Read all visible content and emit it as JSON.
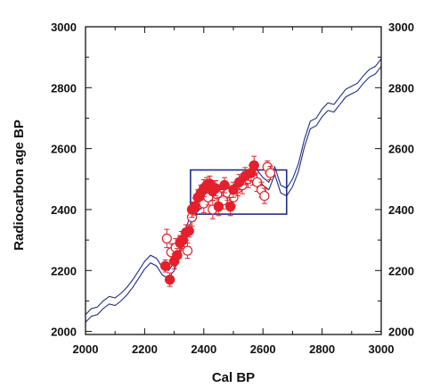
{
  "chart_data": {
    "type": "scatter",
    "title": "",
    "xlabel": "Cal BP",
    "ylabel": "Radiocarbon age BP",
    "xlim": [
      2000,
      3000
    ],
    "ylim": [
      1990,
      3000
    ],
    "x_ticks": [
      "2000",
      "2200",
      "2400",
      "2600",
      "2800",
      "3000"
    ],
    "x_tick_values": [
      2000,
      2200,
      2400,
      2600,
      2800,
      3000
    ],
    "y_ticks_left": [
      "2000",
      "2200",
      "2400",
      "2600",
      "2800",
      "3000"
    ],
    "y_ticks_right": [
      "2000",
      "2200",
      "2400",
      "2600",
      "2800",
      "3000"
    ],
    "y_tick_values": [
      2000,
      2200,
      2400,
      2600,
      2800,
      3000
    ],
    "grid": false,
    "colors": {
      "curve": "#1f2d8a",
      "points": "#e3202b",
      "box": "#1f2d8a",
      "axis": "#111111"
    },
    "calibration_curve": {
      "x": [
        2000,
        2020,
        2040,
        2060,
        2080,
        2100,
        2120,
        2140,
        2160,
        2180,
        2200,
        2220,
        2240,
        2260,
        2280,
        2300,
        2320,
        2340,
        2360,
        2380,
        2400,
        2420,
        2440,
        2460,
        2480,
        2500,
        2520,
        2540,
        2560,
        2580,
        2600,
        2620,
        2640,
        2660,
        2680,
        2700,
        2720,
        2740,
        2760,
        2780,
        2800,
        2820,
        2840,
        2860,
        2880,
        2900,
        2920,
        2940,
        2960,
        2980,
        3000
      ],
      "upper": [
        2055,
        2075,
        2080,
        2100,
        2115,
        2110,
        2125,
        2145,
        2170,
        2200,
        2230,
        2250,
        2240,
        2210,
        2200,
        2225,
        2280,
        2340,
        2395,
        2420,
        2440,
        2460,
        2470,
        2465,
        2470,
        2480,
        2500,
        2510,
        2525,
        2530,
        2505,
        2490,
        2540,
        2480,
        2470,
        2500,
        2550,
        2630,
        2690,
        2700,
        2730,
        2750,
        2745,
        2770,
        2795,
        2805,
        2815,
        2840,
        2860,
        2870,
        2895
      ],
      "lower": [
        2030,
        2050,
        2055,
        2075,
        2090,
        2085,
        2100,
        2120,
        2145,
        2175,
        2205,
        2225,
        2215,
        2185,
        2175,
        2200,
        2255,
        2315,
        2370,
        2395,
        2415,
        2435,
        2445,
        2440,
        2445,
        2455,
        2475,
        2485,
        2500,
        2505,
        2480,
        2465,
        2515,
        2455,
        2445,
        2475,
        2525,
        2605,
        2665,
        2675,
        2705,
        2725,
        2720,
        2745,
        2770,
        2780,
        2790,
        2815,
        2835,
        2845,
        2870
      ]
    },
    "series": [
      {
        "marker": "filled-circle",
        "points": [
          {
            "x": 2270,
            "y": 2215,
            "err": 20
          },
          {
            "x": 2285,
            "y": 2170,
            "err": 22
          },
          {
            "x": 2300,
            "y": 2230,
            "err": 25
          },
          {
            "x": 2310,
            "y": 2250,
            "err": 22
          },
          {
            "x": 2320,
            "y": 2290,
            "err": 25
          },
          {
            "x": 2330,
            "y": 2300,
            "err": 22
          },
          {
            "x": 2340,
            "y": 2325,
            "err": 25
          },
          {
            "x": 2350,
            "y": 2330,
            "err": 20
          },
          {
            "x": 2360,
            "y": 2400,
            "err": 25
          },
          {
            "x": 2370,
            "y": 2410,
            "err": 28
          },
          {
            "x": 2380,
            "y": 2440,
            "err": 25
          },
          {
            "x": 2390,
            "y": 2455,
            "err": 25
          },
          {
            "x": 2400,
            "y": 2470,
            "err": 28
          },
          {
            "x": 2410,
            "y": 2480,
            "err": 25
          },
          {
            "x": 2420,
            "y": 2485,
            "err": 25
          },
          {
            "x": 2430,
            "y": 2460,
            "err": 30
          },
          {
            "x": 2440,
            "y": 2470,
            "err": 25
          },
          {
            "x": 2450,
            "y": 2410,
            "err": 30
          },
          {
            "x": 2470,
            "y": 2480,
            "err": 25
          },
          {
            "x": 2490,
            "y": 2410,
            "err": 30
          },
          {
            "x": 2500,
            "y": 2465,
            "err": 25
          },
          {
            "x": 2520,
            "y": 2490,
            "err": 25
          },
          {
            "x": 2540,
            "y": 2510,
            "err": 28
          },
          {
            "x": 2560,
            "y": 2520,
            "err": 25
          },
          {
            "x": 2570,
            "y": 2545,
            "err": 30
          }
        ]
      },
      {
        "marker": "open-circle",
        "points": [
          {
            "x": 2275,
            "y": 2305,
            "err": 30
          },
          {
            "x": 2290,
            "y": 2260,
            "err": 28
          },
          {
            "x": 2305,
            "y": 2275,
            "err": 30
          },
          {
            "x": 2325,
            "y": 2300,
            "err": 28
          },
          {
            "x": 2345,
            "y": 2265,
            "err": 25
          },
          {
            "x": 2360,
            "y": 2375,
            "err": 30
          },
          {
            "x": 2385,
            "y": 2430,
            "err": 28
          },
          {
            "x": 2400,
            "y": 2420,
            "err": 30
          },
          {
            "x": 2415,
            "y": 2440,
            "err": 25
          },
          {
            "x": 2430,
            "y": 2400,
            "err": 30
          },
          {
            "x": 2445,
            "y": 2450,
            "err": 28
          },
          {
            "x": 2465,
            "y": 2430,
            "err": 28
          },
          {
            "x": 2480,
            "y": 2455,
            "err": 25
          },
          {
            "x": 2500,
            "y": 2440,
            "err": 28
          },
          {
            "x": 2515,
            "y": 2470,
            "err": 25
          },
          {
            "x": 2530,
            "y": 2480,
            "err": 28
          },
          {
            "x": 2550,
            "y": 2500,
            "err": 28
          },
          {
            "x": 2565,
            "y": 2505,
            "err": 25
          },
          {
            "x": 2580,
            "y": 2490,
            "err": 30
          },
          {
            "x": 2595,
            "y": 2465,
            "err": 25
          },
          {
            "x": 2605,
            "y": 2445,
            "err": 25
          },
          {
            "x": 2615,
            "y": 2540,
            "err": 20
          },
          {
            "x": 2625,
            "y": 2520,
            "err": 22
          }
        ]
      }
    ],
    "box": {
      "x0": 2355,
      "x1": 2680,
      "y0": 2385,
      "y1": 2530
    }
  }
}
